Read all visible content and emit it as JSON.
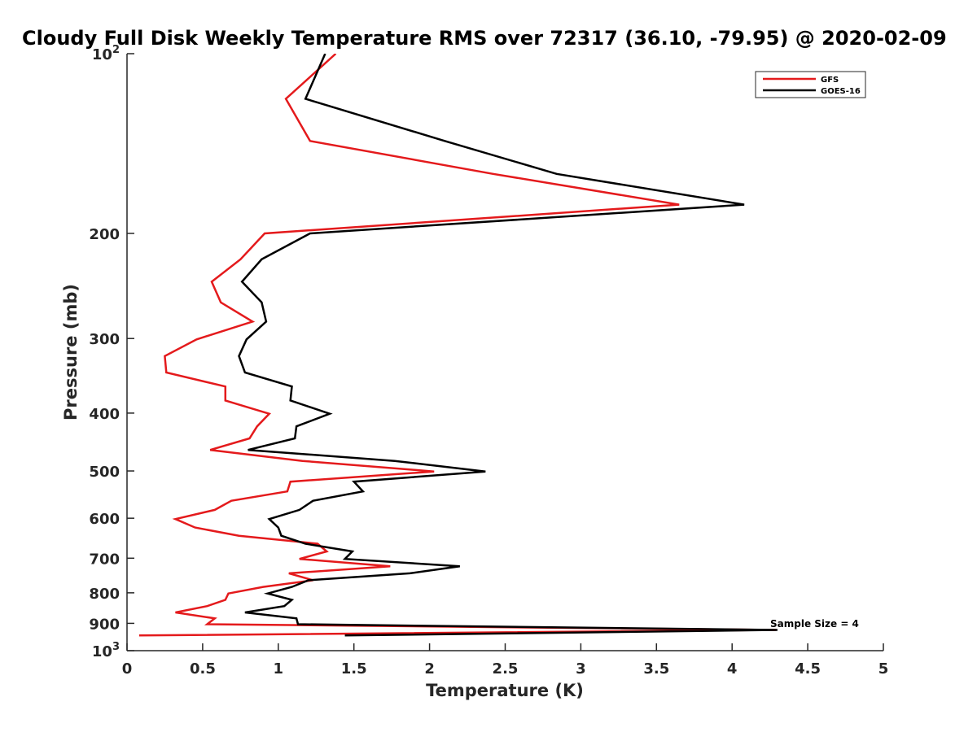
{
  "chart_data": {
    "type": "line",
    "title": "Cloudy Full Disk Weekly Temperature RMS over 72317 (36.10, -79.95) @ 2020-02-09",
    "xlabel": "Temperature (K)",
    "ylabel": "Pressure (mb)",
    "xlim": [
      0,
      5
    ],
    "ylim": [
      100,
      1000
    ],
    "y_scale": "log",
    "y_reversed": true,
    "x_ticks": [
      "0",
      "0.5",
      "1",
      "1.5",
      "2",
      "2.5",
      "3",
      "3.5",
      "4",
      "4.5",
      "5"
    ],
    "y_ticks": [
      {
        "value": 100,
        "base": "10",
        "exp": "2"
      },
      {
        "value": 200,
        "label": "200"
      },
      {
        "value": 300,
        "label": "300"
      },
      {
        "value": 400,
        "label": "400"
      },
      {
        "value": 500,
        "label": "500"
      },
      {
        "value": 600,
        "label": "600"
      },
      {
        "value": 700,
        "label": "700"
      },
      {
        "value": 800,
        "label": "800"
      },
      {
        "value": 900,
        "label": "900"
      },
      {
        "value": 1000,
        "base": "10",
        "exp": "3"
      }
    ],
    "legend_position": "top-right",
    "annotation": "Sample Size = 4",
    "series": [
      {
        "name": "GFS",
        "color": "#e41a1c",
        "points": [
          [
            1.38,
            100
          ],
          [
            1.05,
            119
          ],
          [
            1.21,
            140
          ],
          [
            2.42,
            159
          ],
          [
            3.65,
            179
          ],
          [
            0.91,
            200
          ],
          [
            0.75,
            221
          ],
          [
            0.56,
            241
          ],
          [
            0.62,
            261
          ],
          [
            0.83,
            281
          ],
          [
            0.46,
            301
          ],
          [
            0.25,
            321
          ],
          [
            0.26,
            342
          ],
          [
            0.65,
            361
          ],
          [
            0.65,
            381
          ],
          [
            0.94,
            401
          ],
          [
            0.86,
            421
          ],
          [
            0.81,
            441
          ],
          [
            0.55,
            461
          ],
          [
            1.16,
            481
          ],
          [
            2.03,
            501
          ],
          [
            1.08,
            521
          ],
          [
            1.06,
            541
          ],
          [
            0.69,
            561
          ],
          [
            0.58,
            581
          ],
          [
            0.32,
            602
          ],
          [
            0.45,
            622
          ],
          [
            0.74,
            642
          ],
          [
            1.26,
            662
          ],
          [
            1.32,
            682
          ],
          [
            1.14,
            702
          ],
          [
            1.74,
            722
          ],
          [
            1.07,
            742
          ],
          [
            1.23,
            762
          ],
          [
            0.9,
            782
          ],
          [
            0.67,
            802
          ],
          [
            0.65,
            822
          ],
          [
            0.53,
            842
          ],
          [
            0.32,
            863
          ],
          [
            0.58,
            883
          ],
          [
            0.53,
            903
          ],
          [
            4.29,
            923
          ],
          [
            0.08,
            943
          ]
        ]
      },
      {
        "name": "GOES-16",
        "color": "#000000",
        "points": [
          [
            1.31,
            100
          ],
          [
            1.18,
            119
          ],
          [
            2.1,
            140
          ],
          [
            2.84,
            159
          ],
          [
            4.08,
            179
          ],
          [
            1.21,
            200
          ],
          [
            0.89,
            221
          ],
          [
            0.76,
            241
          ],
          [
            0.89,
            261
          ],
          [
            0.92,
            281
          ],
          [
            0.79,
            301
          ],
          [
            0.74,
            321
          ],
          [
            0.78,
            342
          ],
          [
            1.09,
            361
          ],
          [
            1.08,
            381
          ],
          [
            1.34,
            401
          ],
          [
            1.12,
            421
          ],
          [
            1.11,
            441
          ],
          [
            0.8,
            461
          ],
          [
            1.77,
            481
          ],
          [
            2.37,
            501
          ],
          [
            1.5,
            521
          ],
          [
            1.56,
            541
          ],
          [
            1.23,
            561
          ],
          [
            1.14,
            581
          ],
          [
            0.94,
            602
          ],
          [
            1.0,
            622
          ],
          [
            1.02,
            642
          ],
          [
            1.18,
            662
          ],
          [
            1.49,
            682
          ],
          [
            1.44,
            702
          ],
          [
            2.2,
            722
          ],
          [
            1.87,
            742
          ],
          [
            1.2,
            762
          ],
          [
            1.09,
            782
          ],
          [
            0.93,
            802
          ],
          [
            1.09,
            822
          ],
          [
            1.04,
            842
          ],
          [
            0.78,
            863
          ],
          [
            1.12,
            883
          ],
          [
            1.13,
            903
          ],
          [
            4.3,
            923
          ],
          [
            1.44,
            943
          ]
        ]
      }
    ]
  }
}
